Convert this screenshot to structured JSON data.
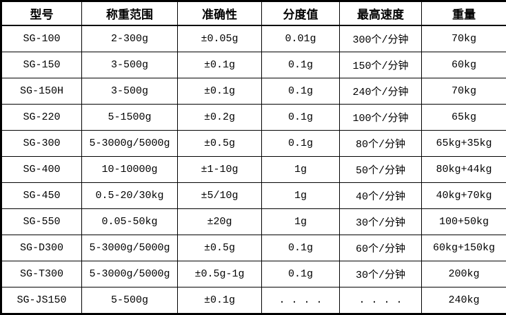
{
  "colors": {
    "border": "#000000",
    "text": "#000000",
    "background": "#ffffff"
  },
  "table": {
    "columns": [
      {
        "key": "model",
        "label": "型号"
      },
      {
        "key": "range",
        "label": "称重范围"
      },
      {
        "key": "accuracy",
        "label": "准确性"
      },
      {
        "key": "division",
        "label": "分度值"
      },
      {
        "key": "speed",
        "label": "最高速度"
      },
      {
        "key": "weight",
        "label": "重量"
      }
    ],
    "rows": [
      {
        "model": "SG-100",
        "range": "2-300g",
        "accuracy": "±0.05g",
        "division": "0.01g",
        "speed": "300个/分钟",
        "weight": "70kg"
      },
      {
        "model": "SG-150",
        "range": "3-500g",
        "accuracy": "±0.1g",
        "division": "0.1g",
        "speed": "150个/分钟",
        "weight": "60kg"
      },
      {
        "model": "SG-150H",
        "range": "3-500g",
        "accuracy": "±0.1g",
        "division": "0.1g",
        "speed": "240个/分钟",
        "weight": "70kg"
      },
      {
        "model": "SG-220",
        "range": "5-1500g",
        "accuracy": "±0.2g",
        "division": "0.1g",
        "speed": "100个/分钟",
        "weight": "65kg"
      },
      {
        "model": "SG-300",
        "range": "5-3000g/5000g",
        "accuracy": "±0.5g",
        "division": "0.1g",
        "speed": "80个/分钟",
        "weight": "65kg+35kg"
      },
      {
        "model": "SG-400",
        "range": "10-10000g",
        "accuracy": "±1-10g",
        "division": "1g",
        "speed": "50个/分钟",
        "weight": "80kg+44kg"
      },
      {
        "model": "SG-450",
        "range": "0.5-20/30kg",
        "accuracy": "±5/10g",
        "division": "1g",
        "speed": "40个/分钟",
        "weight": "40kg+70kg"
      },
      {
        "model": "SG-550",
        "range": "0.05-50kg",
        "accuracy": "±20g",
        "division": "1g",
        "speed": "30个/分钟",
        "weight": "100+50kg"
      },
      {
        "model": "SG-D300",
        "range": "5-3000g/5000g",
        "accuracy": "±0.5g",
        "division": "0.1g",
        "speed": "60个/分钟",
        "weight": "60kg+150kg"
      },
      {
        "model": "SG-T300",
        "range": "5-3000g/5000g",
        "accuracy": "±0.5g-1g",
        "division": "0.1g",
        "speed": "30个/分钟",
        "weight": "200kg"
      },
      {
        "model": "SG-JS150",
        "range": "5-500g",
        "accuracy": "±0.1g",
        "division": ". . . .",
        "speed": ". . . .",
        "weight": "240kg"
      }
    ]
  }
}
